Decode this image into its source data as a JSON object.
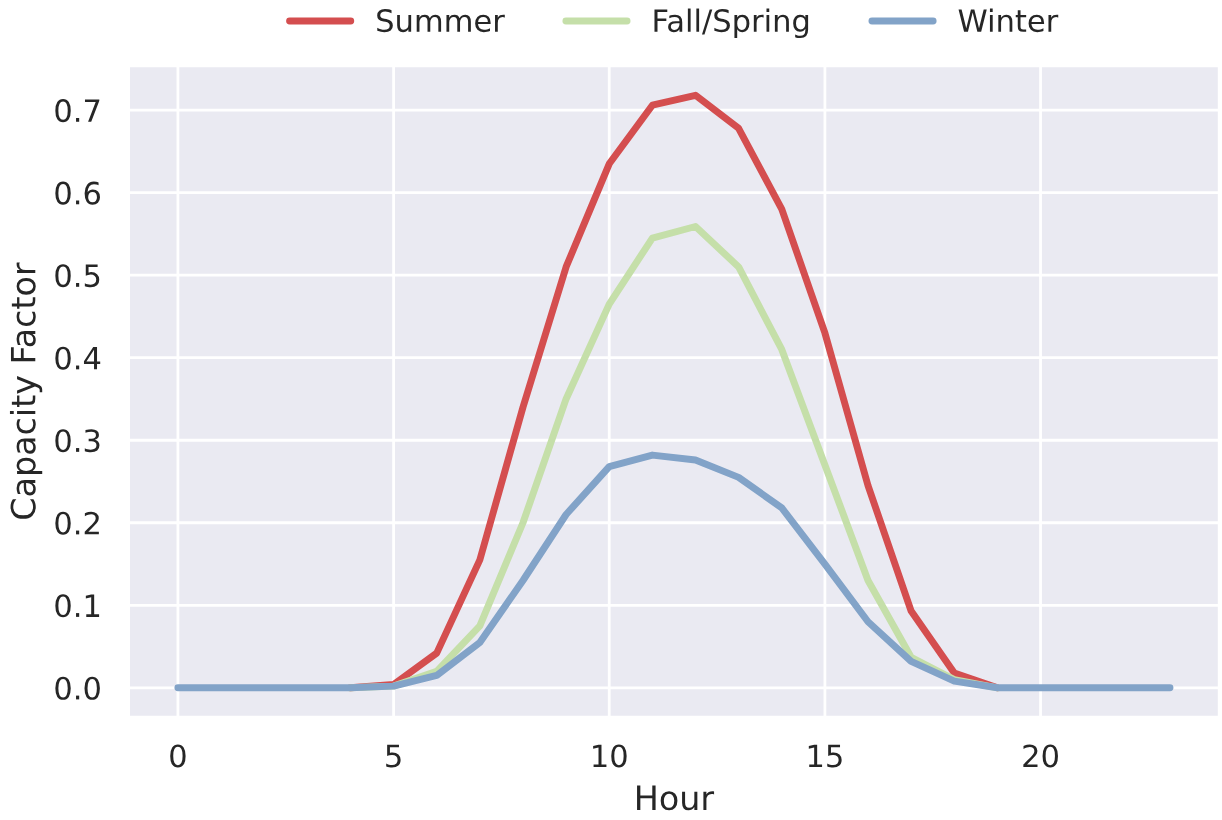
{
  "chart_data": {
    "type": "line",
    "xlabel": "Hour",
    "ylabel": "Capacity Factor",
    "x": [
      0,
      1,
      2,
      3,
      4,
      5,
      6,
      7,
      8,
      9,
      10,
      11,
      12,
      13,
      14,
      15,
      16,
      17,
      18,
      19,
      20,
      21,
      22,
      23
    ],
    "series": [
      {
        "name": "Summer",
        "color": "#d44e4f",
        "values": [
          null,
          null,
          null,
          null,
          0,
          0.004,
          0.042,
          0.155,
          0.34,
          0.51,
          0.635,
          0.706,
          0.718,
          0.678,
          0.58,
          0.43,
          0.245,
          0.093,
          0.018,
          0,
          null,
          null,
          null,
          null
        ]
      },
      {
        "name": "Fall/Spring",
        "color": "#c5dfa9",
        "values": [
          null,
          null,
          null,
          null,
          0,
          0.002,
          0.02,
          0.075,
          0.2,
          0.35,
          0.465,
          0.545,
          0.559,
          0.51,
          0.41,
          0.27,
          0.13,
          0.037,
          0.01,
          0,
          null,
          null,
          null,
          null
        ]
      },
      {
        "name": "Winter",
        "color": "#82a3c8",
        "values": [
          0,
          0,
          0,
          0,
          0,
          0.002,
          0.015,
          0.055,
          0.13,
          0.21,
          0.268,
          0.282,
          0.276,
          0.255,
          0.218,
          0.15,
          0.08,
          0.032,
          0.008,
          0,
          0,
          0,
          0,
          0
        ]
      }
    ],
    "xlim": [
      -1.15,
      24.15
    ],
    "xticks": [
      0,
      5,
      10,
      15,
      20
    ],
    "ylim": [
      -0.036,
      0.754
    ],
    "yticks": [
      {
        "value": 0,
        "label": "0.0"
      },
      {
        "value": 0.1,
        "label": "0.1"
      },
      {
        "value": 0.2,
        "label": "0.2"
      },
      {
        "value": 0.3,
        "label": "0.3"
      },
      {
        "value": 0.4,
        "label": "0.4"
      },
      {
        "value": 0.5,
        "label": "0.5"
      },
      {
        "value": 0.6,
        "label": "0.6"
      },
      {
        "value": 0.7,
        "label": "0.7"
      }
    ],
    "grid": true,
    "legend": "top",
    "line_style": "solid",
    "marker": "none"
  }
}
